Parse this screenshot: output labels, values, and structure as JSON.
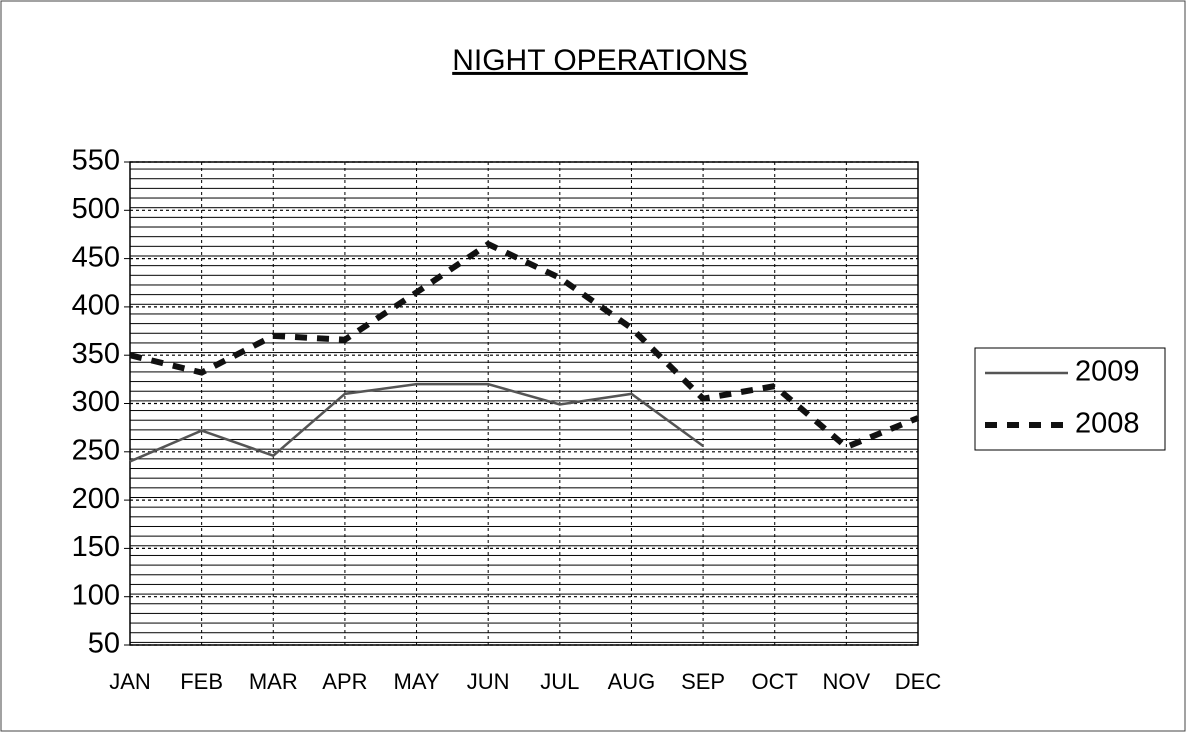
{
  "chart_data": {
    "type": "line",
    "title": "NIGHT OPERATIONS",
    "categories": [
      "JAN",
      "FEB",
      "MAR",
      "APR",
      "MAY",
      "JUN",
      "JUL",
      "AUG",
      "SEP",
      "OCT",
      "NOV",
      "DEC"
    ],
    "series": [
      {
        "name": "2009",
        "color": "#555555",
        "line_style": "solid",
        "values": [
          240,
          272,
          246,
          310,
          320,
          320,
          299,
          310,
          256,
          null,
          null,
          null
        ]
      },
      {
        "name": "2008",
        "color": "#111111",
        "line_style": "dashed",
        "values": [
          350,
          332,
          370,
          366,
          415,
          465,
          430,
          378,
          305,
          318,
          255,
          285
        ]
      }
    ],
    "ylim": [
      50,
      550
    ],
    "yticks": [
      50,
      100,
      150,
      200,
      250,
      300,
      350,
      400,
      450,
      500,
      550
    ],
    "grid": true,
    "legend": "right"
  }
}
